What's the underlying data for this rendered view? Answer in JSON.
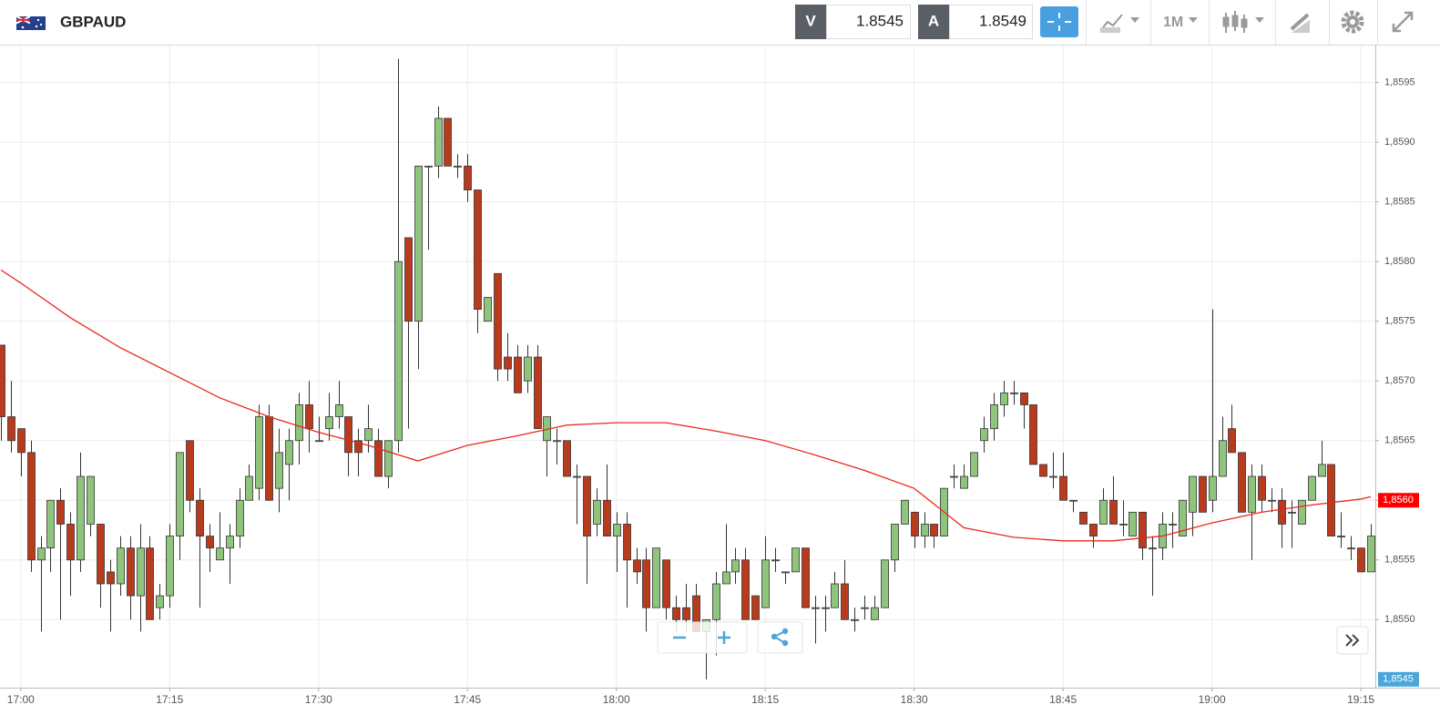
{
  "header": {
    "symbol": "GBPAUD",
    "bid_label": "V",
    "bid": 1.8545,
    "ask_label": "A",
    "ask": 1.8549,
    "timeframe": "1M"
  },
  "chart_data": {
    "type": "candlestick",
    "x": [
      "16:58",
      "16:59",
      "17:00",
      "17:01",
      "17:02",
      "17:03",
      "17:04",
      "17:05",
      "17:06",
      "17:07",
      "17:08",
      "17:09",
      "17:10",
      "17:11",
      "17:12",
      "17:13",
      "17:14",
      "17:15",
      "17:16",
      "17:17",
      "17:18",
      "17:19",
      "17:20",
      "17:21",
      "17:22",
      "17:23",
      "17:24",
      "17:25",
      "17:26",
      "17:27",
      "17:28",
      "17:29",
      "17:30",
      "17:31",
      "17:32",
      "17:33",
      "17:34",
      "17:35",
      "17:36",
      "17:37",
      "17:38",
      "17:39",
      "17:40",
      "17:41",
      "17:42",
      "17:43",
      "17:44",
      "17:45",
      "17:46",
      "17:47",
      "17:48",
      "17:49",
      "17:50",
      "17:51",
      "17:52",
      "17:53",
      "17:54",
      "17:55",
      "17:56",
      "17:57",
      "17:58",
      "17:59",
      "18:00",
      "18:01",
      "18:02",
      "18:03",
      "18:04",
      "18:05",
      "18:06",
      "18:07",
      "18:08",
      "18:09",
      "18:10",
      "18:11",
      "18:12",
      "18:13",
      "18:14",
      "18:15",
      "18:16",
      "18:17",
      "18:18",
      "18:19",
      "18:20",
      "18:21",
      "18:22",
      "18:23",
      "18:24",
      "18:25",
      "18:26",
      "18:27",
      "18:28",
      "18:29",
      "18:30",
      "18:31",
      "18:32",
      "18:33",
      "18:34",
      "18:35",
      "18:36",
      "18:37",
      "18:38",
      "18:39",
      "18:40",
      "18:41",
      "18:42",
      "18:43",
      "18:44",
      "18:45",
      "18:46",
      "18:47",
      "18:48",
      "18:49",
      "18:50",
      "18:51",
      "18:52",
      "18:53",
      "18:54",
      "18:55",
      "18:56",
      "18:57",
      "18:58",
      "18:59",
      "19:00",
      "19:01",
      "19:02",
      "19:03",
      "19:04",
      "19:05",
      "19:06",
      "19:07",
      "19:08",
      "19:09",
      "19:10",
      "19:11",
      "19:12",
      "19:13",
      "19:14",
      "19:15",
      "19:16"
    ],
    "ohlc": [
      [
        1.8573,
        1.8573,
        1.8565,
        1.8567
      ],
      [
        1.8567,
        1.857,
        1.8564,
        1.8565
      ],
      [
        1.8566,
        1.8566,
        1.8562,
        1.8564
      ],
      [
        1.8564,
        1.8565,
        1.8554,
        1.8555
      ],
      [
        1.8555,
        1.8557,
        1.8549,
        1.8556
      ],
      [
        1.8556,
        1.856,
        1.8554,
        1.856
      ],
      [
        1.856,
        1.8561,
        1.855,
        1.8558
      ],
      [
        1.8558,
        1.8559,
        1.8552,
        1.8555
      ],
      [
        1.8555,
        1.8564,
        1.8554,
        1.8562
      ],
      [
        1.8558,
        1.8562,
        1.8557,
        1.8562
      ],
      [
        1.8558,
        1.8558,
        1.8551,
        1.8553
      ],
      [
        1.8554,
        1.8555,
        1.8549,
        1.8553
      ],
      [
        1.8553,
        1.8557,
        1.8552,
        1.8556
      ],
      [
        1.8556,
        1.8557,
        1.855,
        1.8552
      ],
      [
        1.8552,
        1.8558,
        1.8549,
        1.8556
      ],
      [
        1.8556,
        1.8557,
        1.855,
        1.855
      ],
      [
        1.8551,
        1.8553,
        1.855,
        1.8552
      ],
      [
        1.8552,
        1.8558,
        1.8551,
        1.8557
      ],
      [
        1.8557,
        1.8564,
        1.8555,
        1.8564
      ],
      [
        1.8565,
        1.8565,
        1.8559,
        1.856
      ],
      [
        1.856,
        1.8561,
        1.8551,
        1.8557
      ],
      [
        1.8557,
        1.8558,
        1.8554,
        1.8556
      ],
      [
        1.8555,
        1.8559,
        1.8555,
        1.8556
      ],
      [
        1.8556,
        1.8558,
        1.8553,
        1.8557
      ],
      [
        1.8557,
        1.8561,
        1.8556,
        1.856
      ],
      [
        1.856,
        1.8563,
        1.856,
        1.8562
      ],
      [
        1.8561,
        1.8568,
        1.856,
        1.8567
      ],
      [
        1.8567,
        1.8568,
        1.856,
        1.856
      ],
      [
        1.8561,
        1.8566,
        1.8559,
        1.8564
      ],
      [
        1.8563,
        1.8566,
        1.856,
        1.8565
      ],
      [
        1.8565,
        1.8569,
        1.8563,
        1.8568
      ],
      [
        1.8568,
        1.857,
        1.8564,
        1.8566
      ],
      [
        1.8565,
        1.8567,
        1.8565,
        1.8565
      ],
      [
        1.8566,
        1.8569,
        1.8565,
        1.8567
      ],
      [
        1.8567,
        1.857,
        1.8566,
        1.8568
      ],
      [
        1.8567,
        1.8567,
        1.8562,
        1.8564
      ],
      [
        1.8565,
        1.8566,
        1.8562,
        1.8564
      ],
      [
        1.8565,
        1.8568,
        1.8564,
        1.8566
      ],
      [
        1.8565,
        1.8566,
        1.8562,
        1.8562
      ],
      [
        1.8562,
        1.8565,
        1.8561,
        1.8565
      ],
      [
        1.8565,
        1.8597,
        1.8564,
        1.858
      ],
      [
        1.8582,
        1.8582,
        1.8566,
        1.8575
      ],
      [
        1.8575,
        1.8588,
        1.8571,
        1.8588
      ],
      [
        1.8588,
        1.8588,
        1.8581,
        1.8588
      ],
      [
        1.8588,
        1.8593,
        1.8587,
        1.8592
      ],
      [
        1.8592,
        1.8592,
        1.8588,
        1.8588
      ],
      [
        1.8588,
        1.8589,
        1.8587,
        1.8588
      ],
      [
        1.8588,
        1.8589,
        1.8585,
        1.8586
      ],
      [
        1.8586,
        1.8586,
        1.8574,
        1.8576
      ],
      [
        1.8575,
        1.8577,
        1.8575,
        1.8577
      ],
      [
        1.8579,
        1.8579,
        1.857,
        1.8571
      ],
      [
        1.8572,
        1.8574,
        1.857,
        1.8571
      ],
      [
        1.8572,
        1.8573,
        1.8569,
        1.8569
      ],
      [
        1.857,
        1.8573,
        1.8569,
        1.8572
      ],
      [
        1.8572,
        1.8573,
        1.8566,
        1.8566
      ],
      [
        1.8565,
        1.8567,
        1.8562,
        1.8567
      ],
      [
        1.8565,
        1.8566,
        1.8563,
        1.8565
      ],
      [
        1.8565,
        1.8565,
        1.8562,
        1.8562
      ],
      [
        1.8562,
        1.8563,
        1.8558,
        1.8562
      ],
      [
        1.8562,
        1.8562,
        1.8553,
        1.8557
      ],
      [
        1.8558,
        1.8561,
        1.8557,
        1.856
      ],
      [
        1.856,
        1.8563,
        1.8557,
        1.8557
      ],
      [
        1.8557,
        1.8559,
        1.8554,
        1.8558
      ],
      [
        1.8558,
        1.8559,
        1.8551,
        1.8555
      ],
      [
        1.8555,
        1.8556,
        1.8553,
        1.8554
      ],
      [
        1.8555,
        1.8556,
        1.8549,
        1.8551
      ],
      [
        1.8551,
        1.8556,
        1.8551,
        1.8556
      ],
      [
        1.8555,
        1.8555,
        1.855,
        1.8551
      ],
      [
        1.8551,
        1.8552,
        1.8549,
        1.855
      ],
      [
        1.8551,
        1.8553,
        1.8549,
        1.855
      ],
      [
        1.8552,
        1.8553,
        1.8549,
        1.8549
      ],
      [
        1.8549,
        1.855,
        1.8545,
        1.855
      ],
      [
        1.855,
        1.8554,
        1.8547,
        1.8553
      ],
      [
        1.8553,
        1.8558,
        1.8553,
        1.8554
      ],
      [
        1.8554,
        1.8556,
        1.8553,
        1.8555
      ],
      [
        1.8555,
        1.8556,
        1.855,
        1.855
      ],
      [
        1.8552,
        1.8552,
        1.855,
        1.855
      ],
      [
        1.8551,
        1.8557,
        1.8551,
        1.8555
      ],
      [
        1.8555,
        1.8556,
        1.8554,
        1.8555
      ],
      [
        1.8554,
        1.8554,
        1.8553,
        1.8554
      ],
      [
        1.8554,
        1.8556,
        1.8554,
        1.8556
      ],
      [
        1.8556,
        1.8556,
        1.8551,
        1.8551
      ],
      [
        1.8551,
        1.8552,
        1.8548,
        1.8551
      ],
      [
        1.8551,
        1.8552,
        1.8549,
        1.8551
      ],
      [
        1.8551,
        1.8554,
        1.8551,
        1.8553
      ],
      [
        1.8553,
        1.8555,
        1.855,
        1.855
      ],
      [
        1.855,
        1.8551,
        1.8549,
        1.855
      ],
      [
        1.8551,
        1.8552,
        1.855,
        1.8551
      ],
      [
        1.855,
        1.8552,
        1.855,
        1.8551
      ],
      [
        1.8551,
        1.8555,
        1.8551,
        1.8555
      ],
      [
        1.8555,
        1.8558,
        1.8554,
        1.8558
      ],
      [
        1.8558,
        1.856,
        1.8558,
        1.856
      ],
      [
        1.8559,
        1.8559,
        1.8556,
        1.8557
      ],
      [
        1.8557,
        1.8559,
        1.8556,
        1.8558
      ],
      [
        1.8558,
        1.8558,
        1.8556,
        1.8557
      ],
      [
        1.8557,
        1.8561,
        1.8557,
        1.8561
      ],
      [
        1.8562,
        1.8563,
        1.8561,
        1.8562
      ],
      [
        1.8561,
        1.8563,
        1.8561,
        1.8562
      ],
      [
        1.8562,
        1.8564,
        1.8562,
        1.8564
      ],
      [
        1.8565,
        1.8567,
        1.8564,
        1.8566
      ],
      [
        1.8566,
        1.8569,
        1.8565,
        1.8568
      ],
      [
        1.8568,
        1.857,
        1.8567,
        1.8569
      ],
      [
        1.8569,
        1.857,
        1.8568,
        1.8569
      ],
      [
        1.8569,
        1.8569,
        1.8566,
        1.8568
      ],
      [
        1.8568,
        1.8568,
        1.8563,
        1.8563
      ],
      [
        1.8563,
        1.8563,
        1.8562,
        1.8562
      ],
      [
        1.8562,
        1.8564,
        1.8561,
        1.8562
      ],
      [
        1.8562,
        1.8564,
        1.856,
        1.856
      ],
      [
        1.856,
        1.856,
        1.8559,
        1.856
      ],
      [
        1.8559,
        1.8559,
        1.8558,
        1.8558
      ],
      [
        1.8558,
        1.8558,
        1.8556,
        1.8557
      ],
      [
        1.8558,
        1.8561,
        1.8558,
        1.856
      ],
      [
        1.856,
        1.8562,
        1.8558,
        1.8558
      ],
      [
        1.8558,
        1.856,
        1.8557,
        1.8558
      ],
      [
        1.8557,
        1.8559,
        1.8557,
        1.8559
      ],
      [
        1.8559,
        1.8559,
        1.8555,
        1.8556
      ],
      [
        1.8556,
        1.8557,
        1.8552,
        1.8556
      ],
      [
        1.8556,
        1.8559,
        1.8555,
        1.8558
      ],
      [
        1.8558,
        1.8559,
        1.8556,
        1.8558
      ],
      [
        1.8557,
        1.856,
        1.8557,
        1.856
      ],
      [
        1.8559,
        1.8562,
        1.8557,
        1.8562
      ],
      [
        1.8562,
        1.8562,
        1.8559,
        1.8559
      ],
      [
        1.856,
        1.8576,
        1.8559,
        1.8562
      ],
      [
        1.8562,
        1.8567,
        1.8562,
        1.8565
      ],
      [
        1.8566,
        1.8568,
        1.8564,
        1.8564
      ],
      [
        1.8564,
        1.8564,
        1.8559,
        1.8559
      ],
      [
        1.8559,
        1.8563,
        1.8555,
        1.8562
      ],
      [
        1.8562,
        1.8563,
        1.8559,
        1.856
      ],
      [
        1.856,
        1.8561,
        1.8559,
        1.856
      ],
      [
        1.856,
        1.8561,
        1.8556,
        1.8558
      ],
      [
        1.8559,
        1.856,
        1.8556,
        1.8559
      ],
      [
        1.8558,
        1.856,
        1.8558,
        1.856
      ],
      [
        1.856,
        1.8562,
        1.856,
        1.8562
      ],
      [
        1.8562,
        1.8565,
        1.8562,
        1.8563
      ],
      [
        1.8563,
        1.8563,
        1.8557,
        1.8557
      ],
      [
        1.8557,
        1.8559,
        1.8556,
        1.8557
      ],
      [
        1.8556,
        1.8557,
        1.8555,
        1.8556
      ],
      [
        1.8556,
        1.8556,
        1.8554,
        1.8554
      ],
      [
        1.8554,
        1.8558,
        1.8554,
        1.8557
      ]
    ],
    "up_color": "#8fc47c",
    "down_color": "#b83b1e",
    "moving_average": {
      "color": "#e8291c",
      "x": [
        "16:58",
        "17:00",
        "17:05",
        "17:10",
        "17:15",
        "17:20",
        "17:25",
        "17:30",
        "17:35",
        "17:40",
        "17:45",
        "17:50",
        "17:55",
        "18:00",
        "18:05",
        "18:10",
        "18:15",
        "18:20",
        "18:25",
        "18:30",
        "18:35",
        "18:40",
        "18:45",
        "18:50",
        "18:55",
        "19:00",
        "19:05",
        "19:10",
        "19:15",
        "19:16"
      ],
      "values": [
        1.85793,
        1.85782,
        1.85753,
        1.85728,
        1.85707,
        1.85686,
        1.8567,
        1.85657,
        1.85646,
        1.85633,
        1.85646,
        1.85654,
        1.85663,
        1.85665,
        1.85665,
        1.85658,
        1.8565,
        1.85638,
        1.85625,
        1.8561,
        1.85577,
        1.85569,
        1.85566,
        1.85566,
        1.8557,
        1.85581,
        1.8559,
        1.85596,
        1.85601,
        1.85603
      ]
    },
    "markers": [
      {
        "value": 1.856,
        "label": "1,8560",
        "color": "#ff0000"
      },
      {
        "value": 1.8545,
        "label": "1,8545",
        "color": "#4ba6d9"
      }
    ],
    "xlim": [
      "16:58",
      "19:16"
    ],
    "xticks": [
      "17:00",
      "17:15",
      "17:30",
      "17:45",
      "18:00",
      "18:15",
      "18:30",
      "18:45",
      "19:00",
      "19:15"
    ],
    "ylim": [
      1.85443,
      1.85981
    ],
    "yticks": [
      {
        "value": 1.855,
        "label": "1,8550"
      },
      {
        "value": 1.8555,
        "label": "1,8555"
      },
      {
        "value": 1.856,
        "label": "1,8560"
      },
      {
        "value": 1.8565,
        "label": "1,8565"
      },
      {
        "value": 1.857,
        "label": "1,8570"
      },
      {
        "value": 1.8575,
        "label": "1,8575"
      },
      {
        "value": 1.858,
        "label": "1,8580"
      },
      {
        "value": 1.8585,
        "label": "1,8585"
      },
      {
        "value": 1.859,
        "label": "1,8590"
      },
      {
        "value": 1.8595,
        "label": "1,8595"
      }
    ],
    "grid": true
  }
}
